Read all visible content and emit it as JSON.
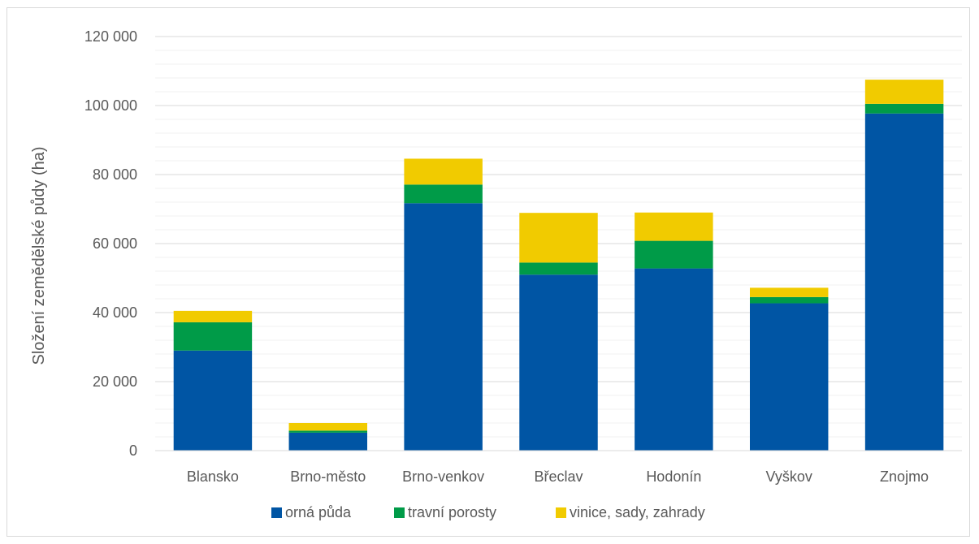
{
  "chart_data": {
    "type": "bar",
    "stacked": true,
    "title": "",
    "xlabel": "",
    "ylabel": "Složení zemědělské půdy (ha)",
    "ylim": [
      0,
      120000
    ],
    "y_major_ticks": [
      0,
      20000,
      40000,
      60000,
      80000,
      100000,
      120000
    ],
    "y_tick_labels": [
      "0",
      "20 000",
      "40 000",
      "60 000",
      "80 000",
      "100 000",
      "120 000"
    ],
    "y_minor_step": 4000,
    "grid": true,
    "legend_position": "bottom",
    "categories": [
      "Blansko",
      "Brno-město",
      "Brno-venkov",
      "Břeclav",
      "Hodonín",
      "Vyškov",
      "Znojmo"
    ],
    "series": [
      {
        "name": "orná půda",
        "color": "#0055a4",
        "values": [
          29000,
          5200,
          71700,
          51000,
          52800,
          42700,
          97700
        ]
      },
      {
        "name": "travní porosty",
        "color": "#009b48",
        "values": [
          8200,
          600,
          5400,
          3500,
          8000,
          1800,
          2800
        ]
      },
      {
        "name": "vinice, sady, zahrady",
        "color": "#f1cb00",
        "values": [
          3300,
          2200,
          7500,
          14400,
          8200,
          2700,
          7000
        ]
      }
    ]
  }
}
